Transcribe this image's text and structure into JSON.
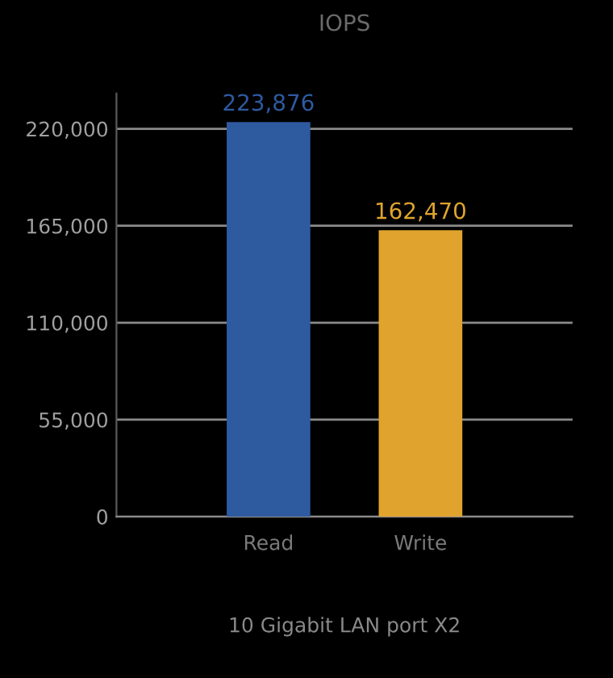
{
  "chart_data": {
    "type": "bar",
    "title": "IOPS",
    "xlabel": "10 Gigabit LAN port X2",
    "categories": [
      "Read",
      "Write"
    ],
    "values": [
      223876,
      162470
    ],
    "colors": [
      "#2e5aa0",
      "#e0a42e"
    ],
    "value_labels": [
      "223,876",
      "162,470"
    ],
    "ylim": [
      0,
      240000
    ],
    "yticks": [
      {
        "value": 0,
        "label": "0"
      },
      {
        "value": 55000,
        "label": "55,000"
      },
      {
        "value": 110000,
        "label": "110,000"
      },
      {
        "value": 165000,
        "label": "165,000"
      },
      {
        "value": 220000,
        "label": "220,000"
      }
    ],
    "grid": "y",
    "legend": false
  }
}
